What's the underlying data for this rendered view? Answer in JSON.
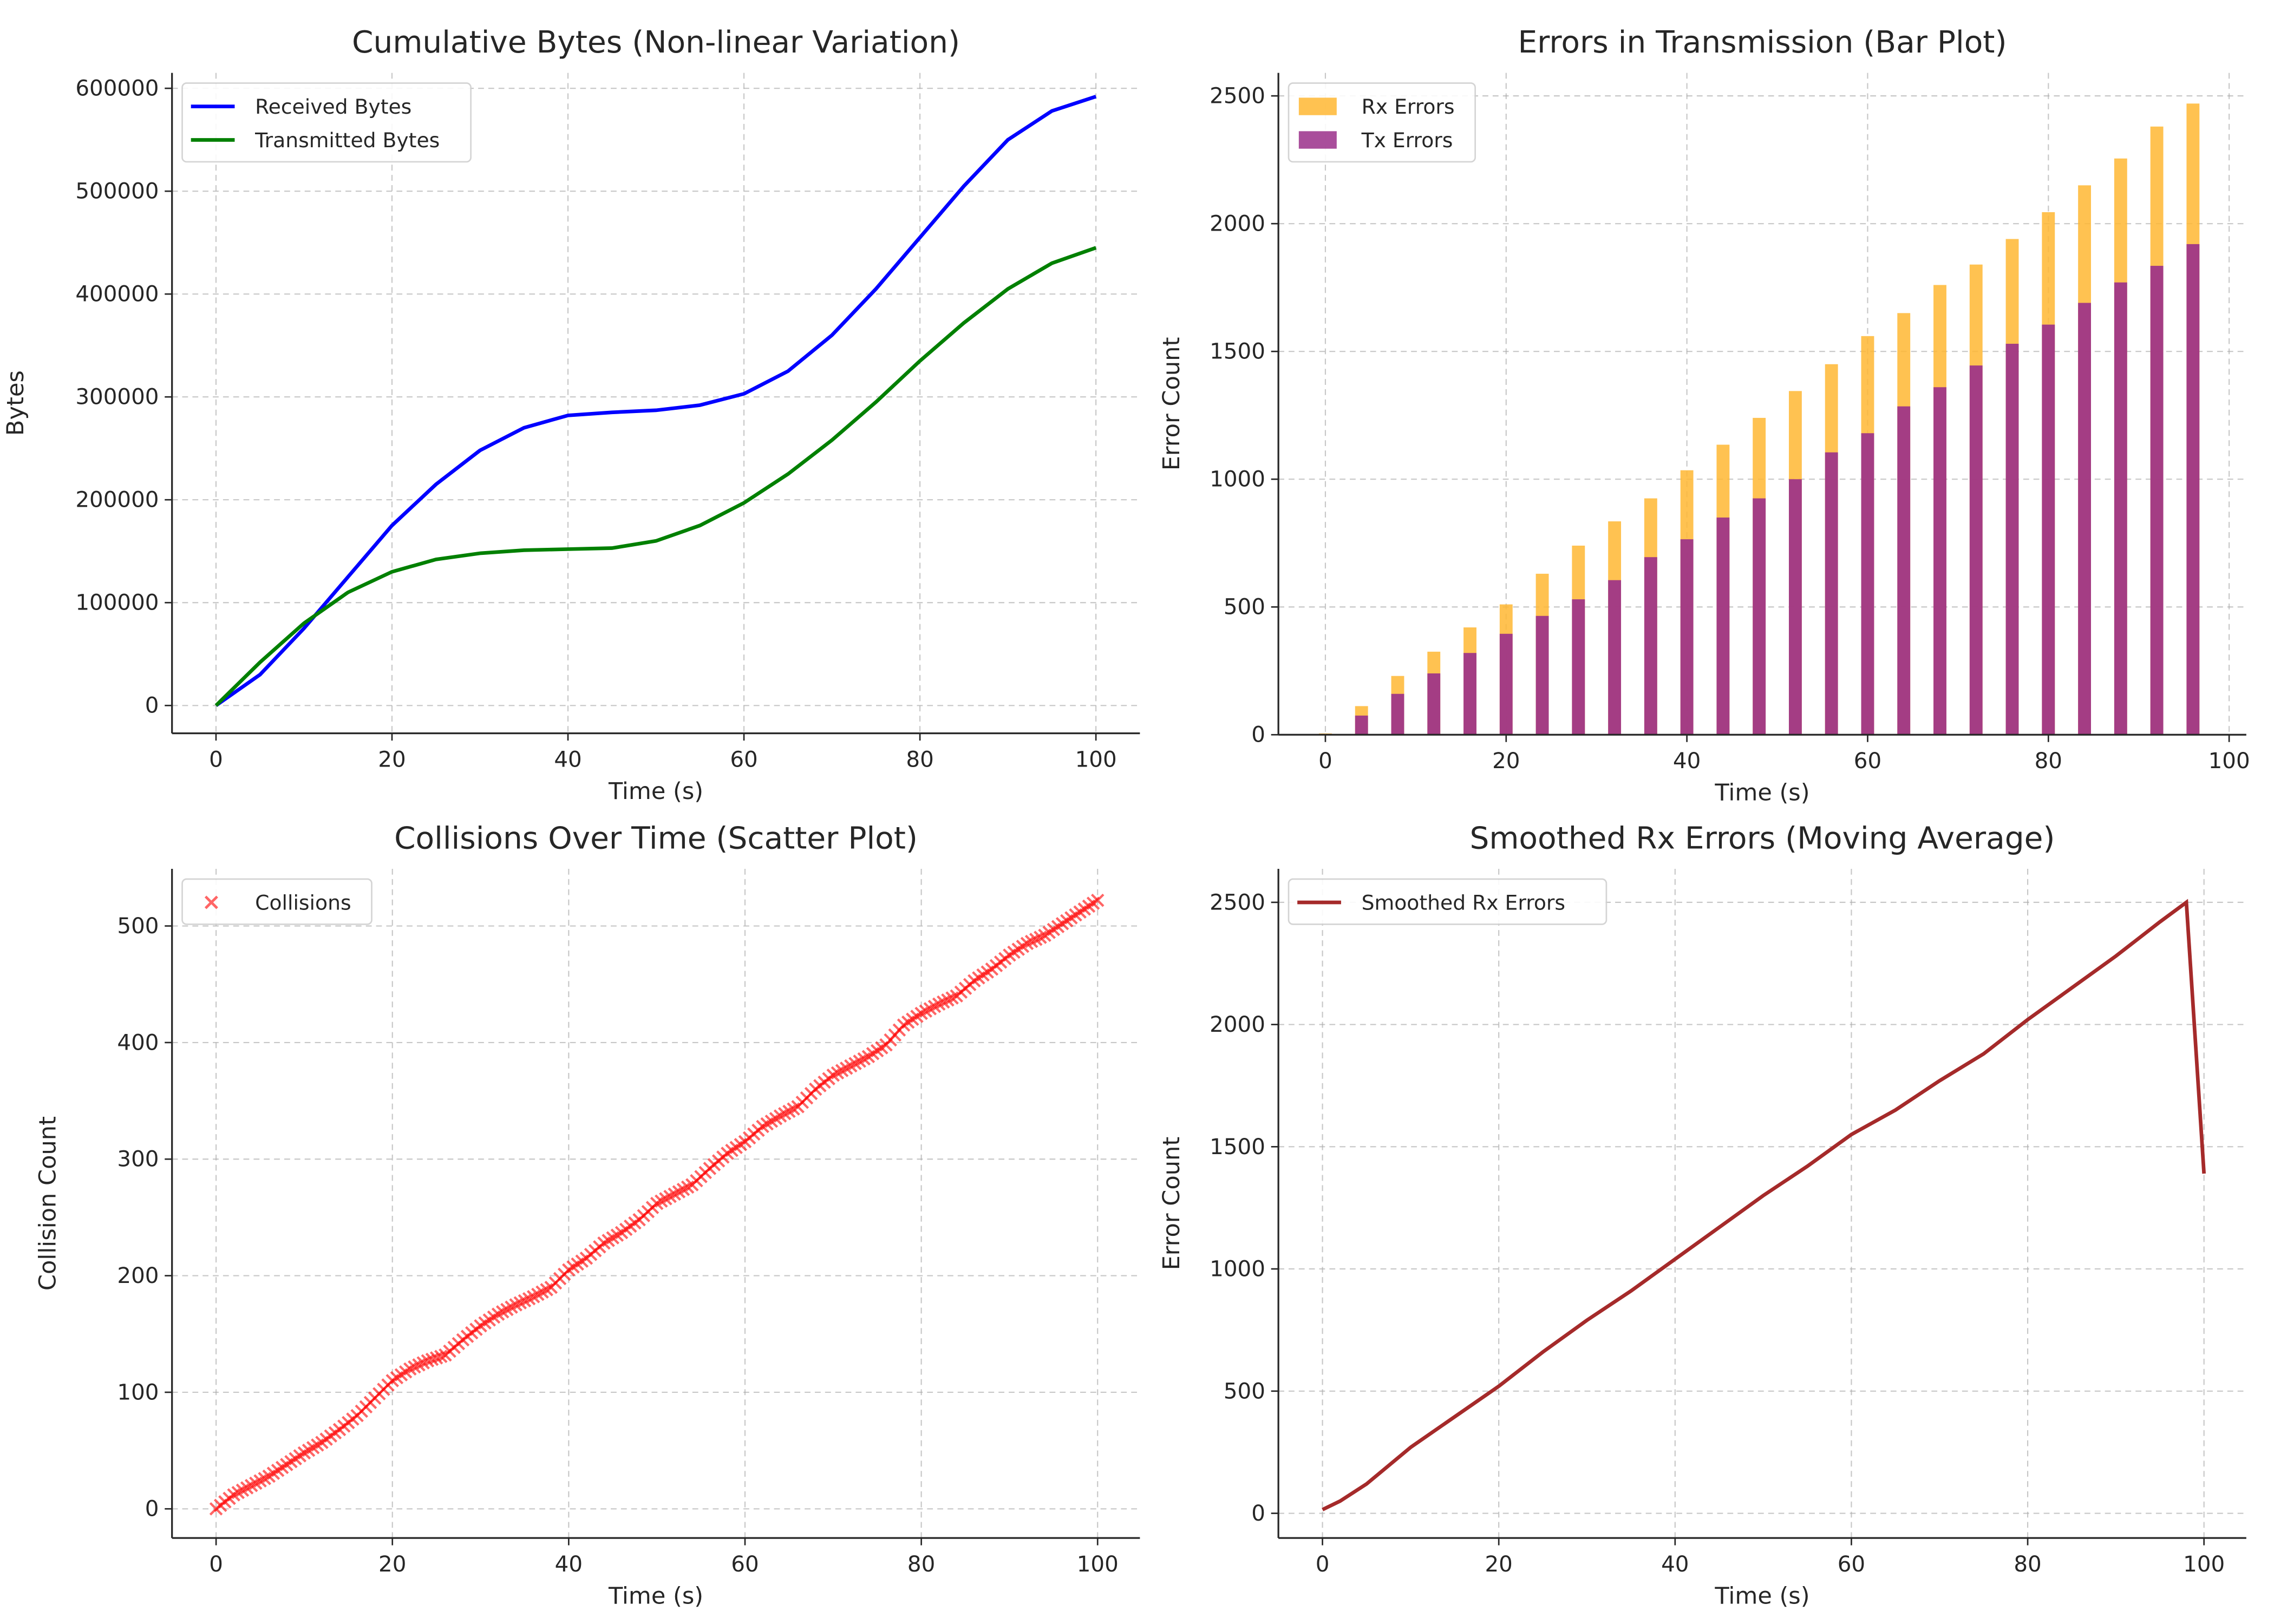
{
  "chart_data": [
    {
      "type": "line",
      "title": "Cumulative Bytes (Non-linear Variation)",
      "xlabel": "Time (s)",
      "ylabel": "Bytes",
      "xlim": [
        -5,
        105
      ],
      "ylim": [
        -27000,
        615000
      ],
      "xticks": [
        0,
        20,
        40,
        60,
        80,
        100
      ],
      "yticks": [
        0,
        100000,
        200000,
        300000,
        400000,
        500000,
        600000
      ],
      "grid": true,
      "legend": "top-left",
      "x": [
        0,
        5,
        10,
        15,
        20,
        25,
        30,
        35,
        40,
        45,
        50,
        55,
        60,
        65,
        70,
        75,
        80,
        85,
        90,
        95,
        100
      ],
      "series": [
        {
          "name": "Received Bytes",
          "color": "#0000ff",
          "values": [
            0,
            30000,
            75000,
            125000,
            175000,
            215000,
            248000,
            270000,
            282000,
            285000,
            287000,
            292000,
            303000,
            325000,
            360000,
            405000,
            455000,
            505000,
            550000,
            578000,
            592000
          ]
        },
        {
          "name": "Transmitted Bytes",
          "color": "#008000",
          "values": [
            0,
            42000,
            80000,
            110000,
            130000,
            142000,
            148000,
            151000,
            152000,
            153000,
            160000,
            175000,
            197000,
            225000,
            258000,
            295000,
            335000,
            372000,
            405000,
            430000,
            445000
          ]
        }
      ]
    },
    {
      "type": "bar",
      "title": "Errors in Transmission (Bar Plot)",
      "xlabel": "Time (s)",
      "ylabel": "Error Count",
      "xlim": [
        -5.2,
        101.9
      ],
      "ylim": [
        0,
        2590
      ],
      "xticks": [
        0,
        20,
        40,
        60,
        80,
        100
      ],
      "yticks": [
        0,
        500,
        1000,
        1500,
        2000,
        2500
      ],
      "grid": true,
      "legend": "top-left",
      "x": [
        0,
        4,
        8,
        12,
        16,
        20,
        24,
        28,
        32,
        36,
        40,
        44,
        48,
        52,
        56,
        60,
        64,
        68,
        72,
        76,
        80,
        84,
        88,
        92,
        96
      ],
      "series": [
        {
          "name": "Rx Errors",
          "color": "#ffb732",
          "values": [
            5,
            112,
            230,
            325,
            420,
            510,
            630,
            740,
            835,
            925,
            1035,
            1135,
            1240,
            1345,
            1450,
            1560,
            1650,
            1760,
            1840,
            1940,
            2045,
            2150,
            2255,
            2380,
            2470
          ]
        },
        {
          "name": "Tx Errors",
          "color": "#9a2f8a",
          "values": [
            0,
            75,
            160,
            240,
            320,
            395,
            465,
            530,
            605,
            695,
            765,
            850,
            925,
            1000,
            1105,
            1180,
            1285,
            1360,
            1445,
            1530,
            1605,
            1690,
            1770,
            1835,
            1920
          ]
        }
      ]
    },
    {
      "type": "scatter",
      "title": "Collisions Over Time (Scatter Plot)",
      "xlabel": "Time (s)",
      "ylabel": "Collision Count",
      "xlim": [
        -5,
        104.8
      ],
      "ylim": [
        -25,
        549
      ],
      "xticks": [
        0,
        20,
        40,
        60,
        80,
        100
      ],
      "yticks": [
        0,
        100,
        200,
        300,
        400,
        500
      ],
      "grid": true,
      "legend": "top-left",
      "x": [
        0,
        2,
        4,
        6,
        8,
        10,
        12,
        14,
        16,
        18,
        20,
        22,
        24,
        26,
        28,
        30,
        32,
        34,
        36,
        38,
        40,
        42,
        44,
        46,
        48,
        50,
        52,
        54,
        56,
        58,
        60,
        62,
        64,
        66,
        68,
        70,
        72,
        74,
        76,
        78,
        80,
        82,
        84,
        86,
        88,
        90,
        92,
        94,
        96,
        98,
        100
      ],
      "series": [
        {
          "name": "Collisions",
          "color": "#ff0000",
          "marker": "x",
          "values": [
            0,
            12,
            20,
            28,
            38,
            48,
            57,
            68,
            80,
            95,
            110,
            120,
            127,
            132,
            145,
            157,
            167,
            175,
            182,
            190,
            205,
            215,
            228,
            237,
            248,
            262,
            270,
            278,
            292,
            305,
            315,
            328,
            337,
            345,
            360,
            372,
            380,
            388,
            398,
            415,
            425,
            433,
            440,
            453,
            463,
            475,
            485,
            492,
            502,
            512,
            522
          ]
        }
      ]
    },
    {
      "type": "line",
      "title": "Smoothed Rx Errors (Moving Average)",
      "xlabel": "Time (s)",
      "ylabel": "Error Count",
      "xlim": [
        -5,
        104.8
      ],
      "ylim": [
        -101,
        2637
      ],
      "xticks": [
        0,
        20,
        40,
        60,
        80,
        100
      ],
      "yticks": [
        0,
        500,
        1000,
        1500,
        2000,
        2500
      ],
      "grid": true,
      "legend": "top-left",
      "x": [
        0,
        2,
        5,
        10,
        15,
        20,
        25,
        30,
        35,
        40,
        45,
        50,
        55,
        60,
        65,
        70,
        75,
        80,
        85,
        90,
        95,
        98,
        100
      ],
      "series": [
        {
          "name": "Smoothed Rx Errors",
          "color": "#a52a2a",
          "values": [
            15,
            50,
            120,
            270,
            395,
            520,
            660,
            790,
            910,
            1040,
            1170,
            1300,
            1420,
            1550,
            1650,
            1770,
            1880,
            2020,
            2150,
            2280,
            2420,
            2500,
            1390
          ]
        }
      ]
    }
  ]
}
